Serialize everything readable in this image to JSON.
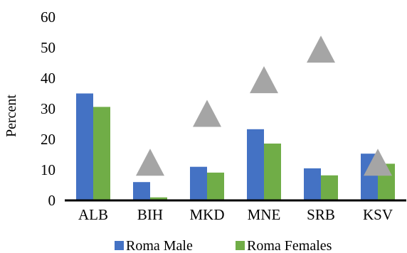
{
  "chart_data": {
    "type": "bar",
    "title": "",
    "xlabel": "",
    "ylabel": "Percent",
    "ylim": [
      0,
      60
    ],
    "yticks": [
      0,
      10,
      20,
      30,
      40,
      50,
      60
    ],
    "grid": false,
    "legend_position": "bottom",
    "categories": [
      "ALB",
      "BIH",
      "MKD",
      "MNE",
      "SRB",
      "KSV"
    ],
    "series": [
      {
        "name": "Roma Male",
        "color": "#4472C4",
        "values": [
          35,
          6,
          11,
          23.3,
          10.5,
          15.3
        ]
      },
      {
        "name": "Roma Females",
        "color": "#70AD47",
        "values": [
          30.6,
          1,
          9.1,
          18.6,
          8.2,
          12
        ]
      }
    ],
    "markers": {
      "shape": "triangle",
      "color": "#A5A5A5",
      "values": [
        null,
        12.5,
        28.5,
        39.5,
        49.5,
        12.5
      ]
    }
  }
}
